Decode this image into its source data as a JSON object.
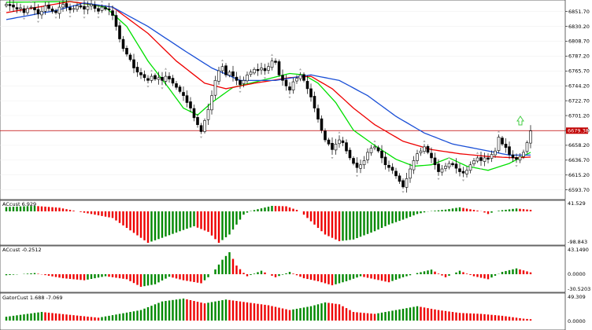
{
  "panels": {
    "main": {
      "y_ticks": [
        "6851.70",
        "6830.20",
        "6808.70",
        "6787.20",
        "6765.70",
        "6744.20",
        "6722.70",
        "6701.20",
        "6679.70",
        "6658.20",
        "6636.70",
        "6615.20",
        "6593.70"
      ],
      "current_price": "6679.38",
      "y_range": [
        6582.0,
        6866.0
      ]
    },
    "ac_custom": {
      "label": "ACcust 6.929",
      "y_ticks": [
        "41.529",
        "-98.843"
      ]
    },
    "ao_custom": {
      "label": "ACcust -0.2512",
      "y_ticks": [
        "43.1490",
        "0.0000",
        "-30.5203"
      ]
    },
    "gator_custom": {
      "label": "GatorCust 1.688 -7.069",
      "y_ticks": [
        "49.309",
        "0.0000"
      ]
    }
  },
  "colors": {
    "bull_bar": "#ffffff",
    "bear_bar": "#000000",
    "ma_fast": "#00e000",
    "ma_mid": "#ee0000",
    "ma_slow": "#1a4fd6",
    "hist_up": "#008800",
    "hist_down": "#ee0000",
    "price_line": "#c00000",
    "signal_arrow": "#44cc44"
  },
  "chart_data": [
    {
      "type": "candlestick",
      "title": "",
      "y_axis_ticks": [
        6851.7,
        6830.2,
        6808.7,
        6787.2,
        6765.7,
        6744.2,
        6722.7,
        6701.2,
        6679.7,
        6658.2,
        6636.7,
        6615.2,
        6593.7
      ],
      "current_price_line": 6679.38,
      "close_path": [
        6862,
        6860,
        6858,
        6855,
        6857,
        6850,
        6856,
        6858,
        6854,
        6848,
        6852,
        6860,
        6856,
        6852,
        6850,
        6858,
        6862,
        6858,
        6854,
        6856,
        6860,
        6858,
        6855,
        6859,
        6862,
        6856,
        6852,
        6858,
        6855,
        6854,
        6846,
        6830,
        6812,
        6798,
        6790,
        6782,
        6770,
        6764,
        6760,
        6756,
        6752,
        6758,
        6754,
        6756,
        6752,
        6758,
        6754,
        6748,
        6742,
        6736,
        6730,
        6720,
        6712,
        6698,
        6688,
        6678,
        6694,
        6710,
        6730,
        6752,
        6766,
        6772,
        6760,
        6764,
        6758,
        6752,
        6746,
        6752,
        6760,
        6764,
        6768,
        6766,
        6770,
        6766,
        6772,
        6780,
        6778,
        6760,
        6752,
        6744,
        6738,
        6750,
        6755,
        6760,
        6752,
        6740,
        6728,
        6712,
        6696,
        6680,
        6666,
        6660,
        6652,
        6660,
        6666,
        6662,
        6650,
        6640,
        6632,
        6626,
        6630,
        6636,
        6648,
        6654,
        6656,
        6650,
        6640,
        6630,
        6626,
        6622,
        6614,
        6606,
        6598,
        6610,
        6624,
        6636,
        6646,
        6650,
        6656,
        6648,
        6640,
        6630,
        6620,
        6624,
        6628,
        6632,
        6630,
        6625,
        6620,
        6618,
        6622,
        6630,
        6636,
        6640,
        6636,
        6640,
        6638,
        6645,
        6650,
        6670,
        6660,
        6655,
        6645,
        6640,
        6638,
        6642,
        6648,
        6662,
        6679
      ],
      "moving_averages": [
        {
          "color": "#00e000",
          "anchors": [
            [
              0,
              6865
            ],
            [
              18,
              6866
            ],
            [
              28,
              6858
            ],
            [
              34,
              6830
            ],
            [
              40,
              6780
            ],
            [
              46,
              6740
            ],
            [
              50,
              6712
            ],
            [
              54,
              6702
            ],
            [
              58,
              6720
            ],
            [
              64,
              6742
            ],
            [
              72,
              6752
            ],
            [
              80,
              6762
            ],
            [
              84,
              6760
            ],
            [
              88,
              6748
            ],
            [
              93,
              6720
            ],
            [
              98,
              6680
            ],
            [
              104,
              6658
            ],
            [
              110,
              6638
            ],
            [
              115,
              6628
            ],
            [
              120,
              6630
            ],
            [
              125,
              6640
            ],
            [
              130,
              6628
            ],
            [
              136,
              6622
            ],
            [
              142,
              6632
            ],
            [
              148,
              6648
            ],
            [
              150,
              6650
            ]
          ]
        },
        {
          "color": "#ee0000",
          "anchors": [
            [
              0,
              6850
            ],
            [
              18,
              6866
            ],
            [
              30,
              6858
            ],
            [
              40,
              6820
            ],
            [
              48,
              6780
            ],
            [
              56,
              6748
            ],
            [
              62,
              6740
            ],
            [
              70,
              6748
            ],
            [
              80,
              6756
            ],
            [
              86,
              6758
            ],
            [
              92,
              6740
            ],
            [
              98,
              6712
            ],
            [
              104,
              6688
            ],
            [
              112,
              6664
            ],
            [
              120,
              6652
            ],
            [
              128,
              6646
            ],
            [
              136,
              6642
            ],
            [
              144,
              6640
            ],
            [
              150,
              6642
            ]
          ]
        },
        {
          "color": "#1a4fd6",
          "anchors": [
            [
              0,
              6840
            ],
            [
              14,
              6853
            ],
            [
              22,
              6864
            ],
            [
              30,
              6858
            ],
            [
              40,
              6830
            ],
            [
              50,
              6796
            ],
            [
              58,
              6770
            ],
            [
              66,
              6752
            ],
            [
              76,
              6752
            ],
            [
              86,
              6760
            ],
            [
              94,
              6752
            ],
            [
              102,
              6730
            ],
            [
              110,
              6700
            ],
            [
              118,
              6676
            ],
            [
              126,
              6660
            ],
            [
              134,
              6652
            ],
            [
              142,
              6644
            ],
            [
              150,
              6644
            ]
          ]
        }
      ]
    },
    {
      "type": "bar",
      "title": "ACcust 6.929",
      "y_axis_ticks": [
        41.529,
        -98.843
      ],
      "anchors": [
        [
          0,
          30
        ],
        [
          8,
          38
        ],
        [
          15,
          25
        ],
        [
          20,
          0
        ],
        [
          24,
          -8
        ],
        [
          30,
          -20
        ],
        [
          36,
          -65
        ],
        [
          40,
          -95
        ],
        [
          44,
          -80
        ],
        [
          49,
          -60
        ],
        [
          53,
          -45
        ],
        [
          57,
          -62
        ],
        [
          60,
          -95
        ],
        [
          63,
          -70
        ],
        [
          67,
          -10
        ],
        [
          71,
          15
        ],
        [
          75,
          38
        ],
        [
          79,
          35
        ],
        [
          82,
          10
        ],
        [
          86,
          -30
        ],
        [
          90,
          -70
        ],
        [
          94,
          -90
        ],
        [
          98,
          -85
        ],
        [
          104,
          -60
        ],
        [
          108,
          -40
        ],
        [
          112,
          -25
        ],
        [
          116,
          -8
        ],
        [
          120,
          2
        ],
        [
          124,
          12
        ],
        [
          128,
          28
        ],
        [
          132,
          10
        ],
        [
          136,
          -8
        ],
        [
          140,
          8
        ],
        [
          144,
          20
        ],
        [
          150,
          6
        ]
      ],
      "last_value": 6.929
    },
    {
      "type": "bar",
      "title": "ACcust -0.2512",
      "y_axis_ticks": [
        43.149,
        0.0,
        -30.5203
      ],
      "anchors": [
        [
          0,
          -2
        ],
        [
          8,
          2
        ],
        [
          16,
          -8
        ],
        [
          22,
          -12
        ],
        [
          28,
          -4
        ],
        [
          34,
          -10
        ],
        [
          38,
          -25
        ],
        [
          42,
          -20
        ],
        [
          46,
          -5
        ],
        [
          50,
          -12
        ],
        [
          55,
          -18
        ],
        [
          58,
          0
        ],
        [
          61,
          25
        ],
        [
          63,
          38
        ],
        [
          65,
          15
        ],
        [
          68,
          -4
        ],
        [
          72,
          6
        ],
        [
          76,
          -6
        ],
        [
          80,
          4
        ],
        [
          84,
          -8
        ],
        [
          88,
          -14
        ],
        [
          92,
          -22
        ],
        [
          96,
          -14
        ],
        [
          100,
          -4
        ],
        [
          104,
          -10
        ],
        [
          108,
          -16
        ],
        [
          112,
          -6
        ],
        [
          116,
          2
        ],
        [
          120,
          8
        ],
        [
          124,
          -6
        ],
        [
          128,
          6
        ],
        [
          132,
          -4
        ],
        [
          136,
          -10
        ],
        [
          140,
          4
        ],
        [
          144,
          10
        ],
        [
          150,
          -0.25
        ]
      ],
      "last_value": -0.2512
    },
    {
      "type": "bar",
      "title": "GatorCust 1.688 -7.069",
      "y_axis_ticks": [
        49.309,
        0.0
      ],
      "anchors": [
        [
          0,
          8
        ],
        [
          10,
          18
        ],
        [
          18,
          12
        ],
        [
          26,
          6
        ],
        [
          32,
          14
        ],
        [
          38,
          22
        ],
        [
          44,
          40
        ],
        [
          50,
          46
        ],
        [
          56,
          36
        ],
        [
          62,
          44
        ],
        [
          68,
          38
        ],
        [
          74,
          32
        ],
        [
          80,
          22
        ],
        [
          86,
          30
        ],
        [
          90,
          38
        ],
        [
          94,
          34
        ],
        [
          98,
          18
        ],
        [
          104,
          14
        ],
        [
          110,
          22
        ],
        [
          116,
          30
        ],
        [
          122,
          22
        ],
        [
          128,
          16
        ],
        [
          134,
          14
        ],
        [
          140,
          10
        ],
        [
          146,
          4
        ],
        [
          150,
          1.688
        ]
      ],
      "last_value": 1.688,
      "lower_last_value": -7.069
    }
  ]
}
